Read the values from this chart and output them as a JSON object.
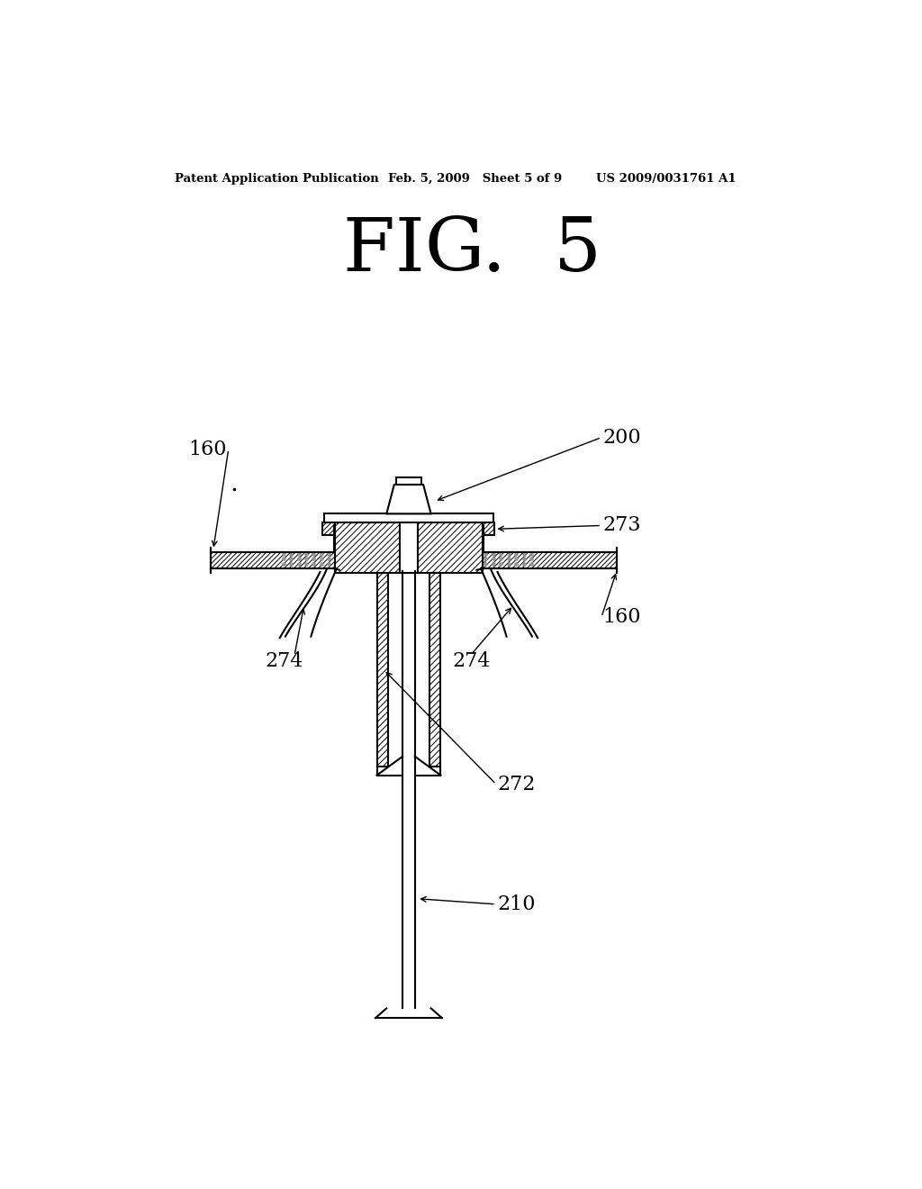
{
  "background_color": "#ffffff",
  "header_left": "Patent Application Publication",
  "header_mid": "Feb. 5, 2009   Sheet 5 of 9",
  "header_right": "US 2009/0031761 A1",
  "fig_title": "FIG.  5",
  "line_color": "#000000",
  "labels": [
    "160",
    "160",
    "200",
    "273",
    "274",
    "274",
    "272",
    "210"
  ]
}
